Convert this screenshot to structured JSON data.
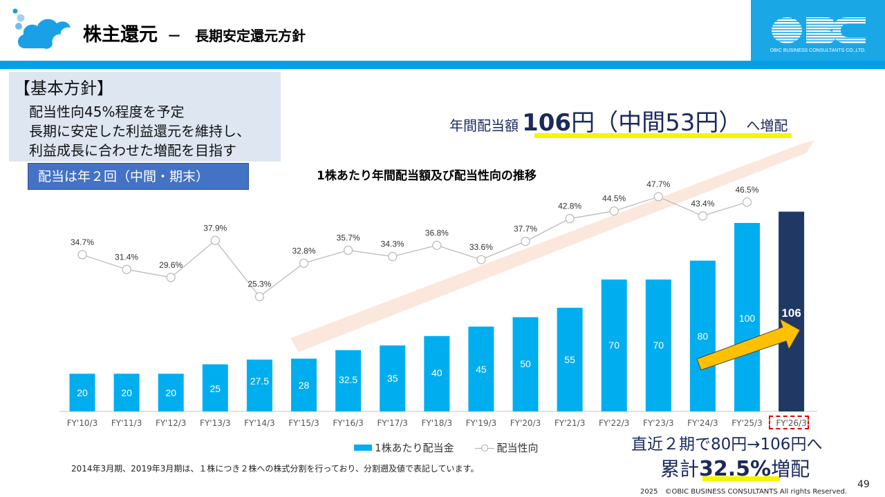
{
  "header": {
    "title": "株主還元",
    "subtitle": "－　長期安定還元方針",
    "logo_text": "OBC",
    "logo_caption": "OBIC BUSINESS CONSULTANTS CO.,LTD.",
    "brand_color": "#00a0e6"
  },
  "policy": {
    "heading": "【基本方針】",
    "lines": [
      "配当性向45%程度を予定",
      "長期に安定した利益還元を維持し、",
      "利益成長に合わせた増配を目指す"
    ],
    "frequency_badge": "配当は年２回（中間・期末）"
  },
  "headline": {
    "prefix": "年間配当額",
    "amount": "106",
    "unit_and_interim": "円（中間53円）",
    "suffix": "へ増配"
  },
  "chart_data": {
    "type": "bar",
    "title": "1株あたり年間配当額及び配当性向の推移",
    "categories": [
      "FY'10/3",
      "FY'11/3",
      "FY'12/3",
      "FY'13/3",
      "FY'14/3",
      "FY'15/3",
      "FY'16/3",
      "FY'17/3",
      "FY'18/3",
      "FY'19/3",
      "FY'20/3",
      "FY'21/3",
      "FY'22/3",
      "FY'23/3",
      "FY'24/3",
      "FY'25/3",
      "FY'26/3"
    ],
    "series": [
      {
        "name": "1株あたり配当金",
        "type": "bar",
        "color": "#00aeef",
        "highlight_color": "#1f3864",
        "values": [
          20,
          20,
          20,
          25,
          27.5,
          28,
          32.5,
          35,
          40,
          45,
          50,
          55,
          70,
          70,
          80,
          100,
          106
        ],
        "labels": [
          "20",
          "20",
          "20",
          "25",
          "27.5",
          "28",
          "32.5",
          "35",
          "40",
          "45",
          "50",
          "55",
          "70",
          "70",
          "80",
          "100",
          "106"
        ]
      },
      {
        "name": "配当性向",
        "type": "line",
        "color": "#bbbbbb",
        "unit": "%",
        "values": [
          34.7,
          31.4,
          29.6,
          37.9,
          25.3,
          32.8,
          35.7,
          34.3,
          36.8,
          33.6,
          37.7,
          42.8,
          44.5,
          47.7,
          43.4,
          46.5,
          null
        ],
        "labels": [
          "34.7%",
          "31.4%",
          "29.6%",
          "37.9%",
          "25.3%",
          "32.8%",
          "35.7%",
          "34.3%",
          "36.8%",
          "33.6%",
          "37.7%",
          "42.8%",
          "44.5%",
          "47.7%",
          "43.4%",
          "46.5%",
          ""
        ]
      }
    ],
    "highlighted_category": "FY'26/3",
    "legend": [
      "1株あたり配当金",
      "配当性向"
    ],
    "legend_position": "bottom",
    "xlabel": "",
    "ylabel": "",
    "grid": false
  },
  "footnote": "2014年3月期、2019年3月期は、１株につき２株への株式分割を行っており、分割遡及値で表記しています。",
  "summary": {
    "line1": "直近２期で80円→106円へ",
    "line2_prefix": "累計",
    "line2_value": "32.5%",
    "line2_suffix": "増配"
  },
  "footer": {
    "copyright": "2025　©OBIC BUSINESS CONSULTANTS All rights Reserved.",
    "page_number": "49"
  }
}
